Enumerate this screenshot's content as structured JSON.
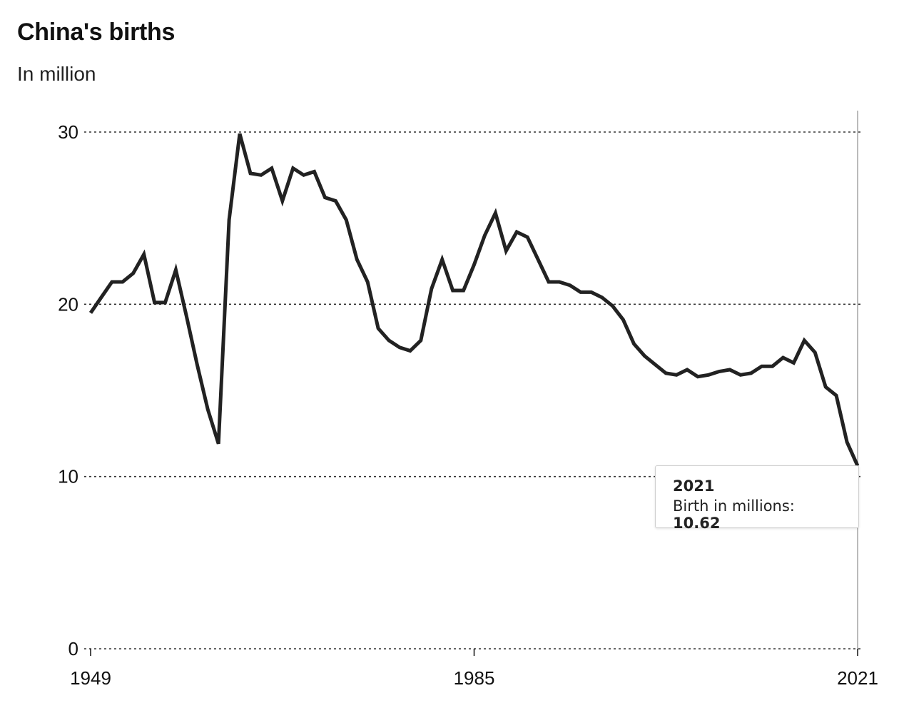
{
  "header": {
    "title": "China's births",
    "subtitle": "In million"
  },
  "tooltip": {
    "year": "2021",
    "label": "Birth in millions: ",
    "value": "10.62"
  },
  "colors": {
    "line": "#222222",
    "grid": "#333333",
    "hover_rule": "#bbbbbb"
  },
  "chart_data": {
    "type": "line",
    "title": "China's births",
    "subtitle": "In million",
    "xlabel": "",
    "ylabel": "",
    "xlim": [
      1949,
      2021
    ],
    "ylim": [
      0,
      30
    ],
    "x_ticks": [
      1949,
      1985,
      2021
    ],
    "y_ticks": [
      0,
      10,
      20,
      30
    ],
    "grid": true,
    "grid_style": "dotted horizontal",
    "series": [
      {
        "name": "Birth in millions",
        "x": [
          1949,
          1950,
          1951,
          1952,
          1953,
          1954,
          1955,
          1956,
          1957,
          1958,
          1959,
          1960,
          1961,
          1962,
          1963,
          1964,
          1965,
          1966,
          1967,
          1968,
          1969,
          1970,
          1971,
          1972,
          1973,
          1974,
          1975,
          1976,
          1977,
          1978,
          1979,
          1980,
          1981,
          1982,
          1983,
          1984,
          1985,
          1986,
          1987,
          1988,
          1989,
          1990,
          1991,
          1992,
          1993,
          1994,
          1995,
          1996,
          1997,
          1998,
          1999,
          2000,
          2001,
          2002,
          2003,
          2004,
          2005,
          2006,
          2007,
          2008,
          2009,
          2010,
          2011,
          2012,
          2013,
          2014,
          2015,
          2016,
          2017,
          2018,
          2019,
          2020,
          2021
        ],
        "y": [
          19.5,
          20.4,
          21.3,
          21.3,
          21.8,
          22.9,
          20.1,
          20.1,
          22.0,
          19.3,
          16.5,
          13.9,
          11.9,
          24.9,
          29.9,
          27.6,
          27.5,
          27.9,
          26.0,
          27.9,
          27.5,
          27.7,
          26.2,
          26.0,
          24.9,
          22.6,
          21.3,
          18.6,
          17.9,
          17.5,
          17.3,
          17.9,
          20.9,
          22.6,
          20.8,
          20.8,
          22.3,
          24.0,
          25.3,
          23.1,
          24.2,
          23.9,
          22.6,
          21.3,
          21.3,
          21.1,
          20.7,
          20.7,
          20.4,
          19.9,
          19.1,
          17.7,
          17.0,
          16.5,
          16.0,
          15.9,
          16.2,
          15.8,
          15.9,
          16.1,
          16.2,
          15.9,
          16.0,
          16.4,
          16.4,
          16.9,
          16.6,
          17.9,
          17.2,
          15.2,
          14.7,
          12.0,
          10.62
        ]
      }
    ],
    "legend": "none"
  }
}
